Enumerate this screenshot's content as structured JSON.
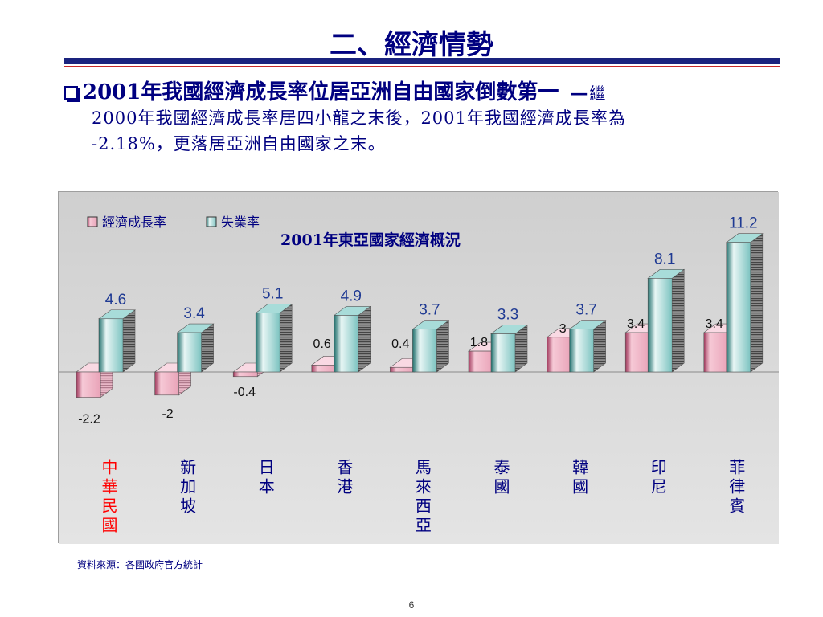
{
  "slide": {
    "title": "二、經濟情勢",
    "bullet_head": "2001年我國經濟成長率位居亞洲自由國家倒數第一",
    "bullet_dash": "—",
    "bullet_tail": "繼",
    "bullet_body_line1": "2000年我國經濟成長率居四小龍之末後，2001年我國經濟成長率為",
    "bullet_body_line2": "-2.18%，更落居亞洲自由國家之末。",
    "source": "資料來源：各國政府官方統計",
    "page_number": "6"
  },
  "colors": {
    "title": "#000080",
    "growth_bar": "#f4b6c8",
    "unemployment_bar": "#3f9c99",
    "highlight_label": "#ff0000",
    "label": "#000080",
    "value_label": "#1f3a93"
  },
  "chart_data": {
    "type": "bar",
    "title": "2001年東亞國家經濟概況",
    "legend_position": "top-left",
    "categories": [
      "中華民國",
      "新加坡",
      "日本",
      "香港",
      "馬來西亞",
      "泰國",
      "韓國",
      "印尼",
      "菲律賓"
    ],
    "highlight_category": "中華民國",
    "series": [
      {
        "name": "經濟成長率",
        "values": [
          -2.2,
          -2,
          -0.4,
          0.6,
          0.4,
          1.8,
          3,
          3.4,
          3.4
        ]
      },
      {
        "name": "失業率",
        "values": [
          4.6,
          3.4,
          5.1,
          4.9,
          3.7,
          3.3,
          3.7,
          8.1,
          11.2
        ]
      }
    ],
    "value_labels": [
      [
        "-2.2",
        "-2",
        "-0.4",
        "0.6",
        "0.4",
        "1.8",
        "3",
        "3.4",
        "3.4"
      ],
      [
        "4.6",
        "3.4",
        "5.1",
        "4.9",
        "3.7",
        "3.3",
        "3.7",
        "8.1",
        "11.2"
      ]
    ],
    "ylim": [
      -3,
      12
    ],
    "grid": false
  }
}
